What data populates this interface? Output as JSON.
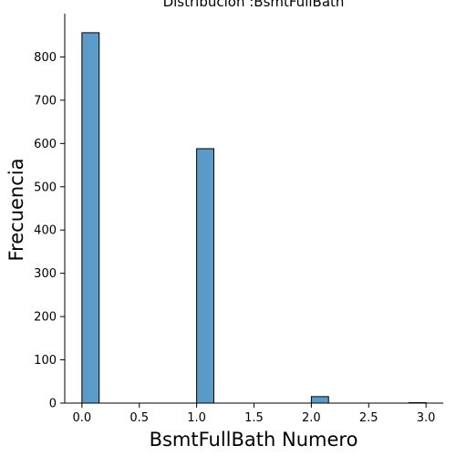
{
  "chart_data": {
    "type": "bar",
    "title": "Distribución :BsmtFullBath",
    "xlabel": "BsmtFullBath Numero",
    "ylabel": "Frecuencia",
    "xlim": [
      -0.15,
      3.15
    ],
    "ylim": [
      0,
      900
    ],
    "x_ticks": [
      "0.0",
      "0.5",
      "1.0",
      "1.5",
      "2.0",
      "2.5",
      "3.0"
    ],
    "y_ticks": [
      "0",
      "100",
      "200",
      "300",
      "400",
      "500",
      "600",
      "700",
      "800"
    ],
    "bins": [
      {
        "x0": 0.0,
        "x1": 0.15,
        "count": 856
      },
      {
        "x0": 1.0,
        "x1": 1.15,
        "count": 588
      },
      {
        "x0": 2.0,
        "x1": 2.15,
        "count": 15
      },
      {
        "x0": 2.85,
        "x1": 3.0,
        "count": 1
      }
    ],
    "bar_color": "#5b9bc9",
    "bar_edge_color": "#000000",
    "grid": false
  }
}
